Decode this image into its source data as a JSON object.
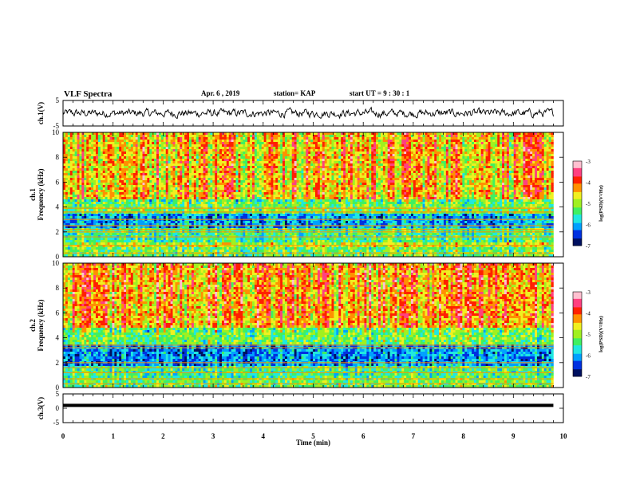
{
  "header": {
    "title": "VLF Spectra",
    "date": "Apr. 6  , 2019",
    "station": "station= KAP",
    "start": "start  UT  =   9  : 30 : 1"
  },
  "colors": {
    "colormap": [
      "#001060",
      "#0030e0",
      "#00a0ff",
      "#20e8e0",
      "#40f060",
      "#a0f020",
      "#f0f020",
      "#ff9000",
      "#ff2000",
      "#ff4080",
      "#ffc0d0"
    ],
    "line": "#000000"
  },
  "chart_data": [
    {
      "type": "line",
      "name": "ch1-waveform",
      "ylabel": "ch.1(V)",
      "ylim": [
        -5,
        5
      ],
      "yticks": [
        "5",
        "-5"
      ],
      "xlim": [
        0,
        10
      ],
      "x_end": 9.8,
      "note_series": "noisy waveform around 0 V with amplitude about ±1.5 V",
      "y_mean": 0,
      "y_amplitude": 1.5
    },
    {
      "type": "heatmap",
      "name": "ch1-spectrogram",
      "ylabel": "Frequency  (kHz)",
      "ylabel_prefix": "ch.1",
      "ylim": [
        0,
        10
      ],
      "yticks": [
        "0",
        "2",
        "4",
        "6",
        "8",
        "10"
      ],
      "xlim": [
        0,
        10
      ],
      "x_end": 9.8,
      "colorbar": {
        "label": "log(PSD)(V²/Hz)",
        "range": [
          -7,
          -3
        ],
        "ticks": [
          "-3",
          "-4",
          "-5",
          "-6",
          "-7"
        ]
      },
      "bands": [
        {
          "from": 0,
          "to": 0.8,
          "level": 0.45
        },
        {
          "from": 0.8,
          "to": 1.2,
          "level": 0.55
        },
        {
          "from": 1.2,
          "to": 2.4,
          "level": 0.4
        },
        {
          "from": 2.4,
          "to": 3.4,
          "level": 0.25
        },
        {
          "from": 3.4,
          "to": 4.6,
          "level": 0.45
        },
        {
          "from": 4.6,
          "to": 10,
          "level": 0.65
        }
      ],
      "lines_khz": [
        0.3,
        0.9,
        1.6,
        2.0,
        2.2,
        2.5,
        3.0,
        3.6,
        3.9
      ]
    },
    {
      "type": "heatmap",
      "name": "ch2-spectrogram",
      "ylabel": "Frequency  (kHz)",
      "ylabel_prefix": "ch.2",
      "ylim": [
        0,
        10
      ],
      "yticks": [
        "0",
        "2",
        "4",
        "6",
        "8",
        "10"
      ],
      "xlim": [
        0,
        10
      ],
      "x_end": 9.8,
      "colorbar": {
        "label": "log(PSD)(V²/Hz)",
        "range": [
          -7,
          -3
        ],
        "ticks": [
          "-3",
          "-4",
          "-5",
          "-6",
          "-7"
        ]
      },
      "bands": [
        {
          "from": 0,
          "to": 0.8,
          "level": 0.45
        },
        {
          "from": 0.8,
          "to": 1.8,
          "level": 0.4
        },
        {
          "from": 1.8,
          "to": 3.4,
          "level": 0.22
        },
        {
          "from": 3.4,
          "to": 4.8,
          "level": 0.45
        },
        {
          "from": 4.8,
          "to": 10,
          "level": 0.68
        }
      ],
      "lines_khz": [
        0.3,
        0.7,
        1.2,
        1.6,
        2.0,
        3.2,
        3.4
      ]
    },
    {
      "type": "line",
      "name": "ch3-waveform",
      "ylabel": "ch.3(V)",
      "ylim": [
        -5,
        5
      ],
      "yticks": [
        "5",
        "0",
        "-5"
      ],
      "xlim": [
        0,
        10
      ],
      "x_end": 9.8,
      "y_mean": 1.0,
      "y_amplitude": 0
    }
  ],
  "xaxis": {
    "label": "Time  (min)",
    "ticks": [
      "0",
      "1",
      "2",
      "3",
      "4",
      "5",
      "6",
      "7",
      "8",
      "9",
      "10"
    ]
  }
}
